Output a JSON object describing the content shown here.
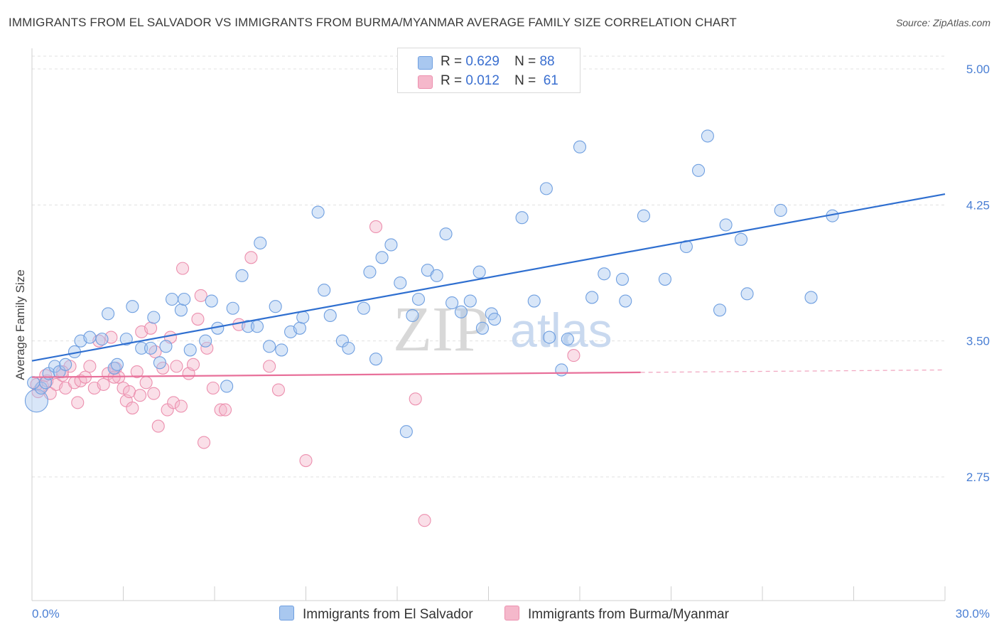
{
  "title": "IMMIGRANTS FROM EL SALVADOR VS IMMIGRANTS FROM BURMA/MYANMAR AVERAGE FAMILY SIZE CORRELATION CHART",
  "source": "Source: ZipAtlas.com",
  "watermark": {
    "zip": "ZIP",
    "atlas": "atlas"
  },
  "colors": {
    "blue_fill": "#a9c8f0",
    "blue_stroke": "#6f9fe0",
    "blue_line": "#2f6fd0",
    "pink_fill": "#f5b8cb",
    "pink_stroke": "#ec8fae",
    "pink_line": "#e8709a",
    "grid": "#e0e0e0",
    "tick_text": "#4a7fd4"
  },
  "legend": {
    "rows": [
      {
        "r_label": "R =",
        "r_value": "0.629",
        "n_label": "N =",
        "n_value": "88"
      },
      {
        "r_label": "R =",
        "r_value": "0.012",
        "n_label": "N =",
        "n_value": "61"
      }
    ]
  },
  "bottom_legend": [
    "Immigrants from El Salvador",
    "Immigrants from Burma/Myanmar"
  ],
  "chart_data": {
    "type": "scatter",
    "xlabel": "",
    "ylabel": "Average Family Size",
    "xlim": [
      0,
      30
    ],
    "ylim": [
      2.0,
      5.15
    ],
    "x_tick_labels": [
      {
        "value": 0,
        "label": "0.0%"
      },
      {
        "value": 30,
        "label": "30.0%"
      }
    ],
    "y_ticks": [
      {
        "value": 5.0,
        "label": "5.00"
      },
      {
        "value": 4.25,
        "label": "4.25"
      },
      {
        "value": 3.5,
        "label": "3.50"
      },
      {
        "value": 2.75,
        "label": "2.75"
      }
    ],
    "grid": "horizontal dashed",
    "series": [
      {
        "name": "Immigrants from El Salvador",
        "color": "blue",
        "trend": {
          "x0": 0,
          "y0": 3.39,
          "x1": 30,
          "y1": 4.31,
          "dashed_from": null
        },
        "points": [
          [
            0.15,
            3.17
          ],
          [
            0.3,
            3.24
          ],
          [
            0.45,
            3.27
          ],
          [
            0.55,
            3.32
          ],
          [
            0.75,
            3.36
          ],
          [
            0.9,
            3.33
          ],
          [
            1.1,
            3.37
          ],
          [
            1.4,
            3.44
          ],
          [
            1.6,
            3.5
          ],
          [
            1.9,
            3.52
          ],
          [
            2.3,
            3.51
          ],
          [
            2.5,
            3.65
          ],
          [
            2.7,
            3.35
          ],
          [
            2.8,
            3.37
          ],
          [
            3.1,
            3.51
          ],
          [
            3.3,
            3.69
          ],
          [
            3.6,
            3.46
          ],
          [
            3.9,
            3.46
          ],
          [
            4.0,
            3.63
          ],
          [
            4.2,
            3.38
          ],
          [
            4.4,
            3.47
          ],
          [
            4.6,
            3.73
          ],
          [
            4.9,
            3.67
          ],
          [
            5.0,
            3.73
          ],
          [
            5.2,
            3.45
          ],
          [
            5.7,
            3.5
          ],
          [
            5.9,
            3.72
          ],
          [
            6.1,
            3.57
          ],
          [
            6.4,
            3.25
          ],
          [
            6.6,
            3.68
          ],
          [
            6.9,
            3.86
          ],
          [
            7.1,
            3.58
          ],
          [
            7.4,
            3.58
          ],
          [
            7.5,
            4.04
          ],
          [
            7.8,
            3.47
          ],
          [
            8.0,
            3.69
          ],
          [
            8.2,
            3.45
          ],
          [
            8.5,
            3.55
          ],
          [
            8.8,
            3.57
          ],
          [
            8.9,
            3.63
          ],
          [
            9.4,
            4.21
          ],
          [
            9.6,
            3.78
          ],
          [
            9.8,
            3.64
          ],
          [
            10.2,
            3.5
          ],
          [
            10.4,
            3.46
          ],
          [
            10.9,
            3.68
          ],
          [
            11.1,
            3.88
          ],
          [
            11.3,
            3.4
          ],
          [
            11.5,
            3.96
          ],
          [
            11.8,
            4.03
          ],
          [
            12.1,
            3.82
          ],
          [
            12.5,
            3.64
          ],
          [
            12.7,
            3.73
          ],
          [
            13.0,
            3.89
          ],
          [
            13.3,
            3.86
          ],
          [
            13.6,
            4.09
          ],
          [
            13.8,
            3.71
          ],
          [
            14.1,
            3.66
          ],
          [
            14.4,
            3.72
          ],
          [
            14.7,
            3.88
          ],
          [
            14.8,
            3.57
          ],
          [
            15.1,
            3.65
          ],
          [
            15.2,
            3.62
          ],
          [
            16.1,
            4.18
          ],
          [
            16.5,
            3.72
          ],
          [
            16.9,
            4.34
          ],
          [
            17.0,
            3.52
          ],
          [
            17.4,
            3.34
          ],
          [
            17.6,
            3.51
          ],
          [
            18.0,
            4.57
          ],
          [
            18.4,
            3.74
          ],
          [
            18.8,
            3.87
          ],
          [
            19.4,
            3.84
          ],
          [
            19.5,
            3.72
          ],
          [
            20.1,
            4.19
          ],
          [
            20.8,
            3.84
          ],
          [
            21.5,
            4.02
          ],
          [
            21.9,
            4.44
          ],
          [
            22.2,
            4.63
          ],
          [
            22.6,
            3.67
          ],
          [
            22.8,
            4.14
          ],
          [
            23.3,
            4.06
          ],
          [
            23.5,
            3.76
          ],
          [
            24.6,
            4.22
          ],
          [
            25.6,
            3.74
          ],
          [
            26.3,
            4.19
          ],
          [
            12.3,
            3.0
          ],
          [
            0.05,
            3.27
          ]
        ]
      },
      {
        "name": "Immigrants from Burma/Myanmar",
        "color": "pink",
        "trend": {
          "x0": 0,
          "y0": 3.3,
          "x1": 30,
          "y1": 3.34,
          "dashed_from": 20
        },
        "points": [
          [
            0.2,
            3.22
          ],
          [
            0.35,
            3.25
          ],
          [
            0.5,
            3.28
          ],
          [
            0.6,
            3.21
          ],
          [
            0.8,
            3.26
          ],
          [
            1.0,
            3.31
          ],
          [
            1.1,
            3.24
          ],
          [
            1.25,
            3.36
          ],
          [
            1.4,
            3.27
          ],
          [
            1.5,
            3.16
          ],
          [
            1.6,
            3.28
          ],
          [
            1.75,
            3.3
          ],
          [
            1.9,
            3.36
          ],
          [
            2.05,
            3.24
          ],
          [
            2.2,
            3.5
          ],
          [
            2.35,
            3.26
          ],
          [
            2.5,
            3.32
          ],
          [
            2.6,
            3.52
          ],
          [
            2.75,
            3.35
          ],
          [
            2.85,
            3.3
          ],
          [
            3.0,
            3.24
          ],
          [
            3.1,
            3.17
          ],
          [
            3.2,
            3.22
          ],
          [
            3.3,
            3.13
          ],
          [
            3.45,
            3.33
          ],
          [
            3.6,
            3.55
          ],
          [
            3.75,
            3.27
          ],
          [
            3.9,
            3.57
          ],
          [
            4.0,
            3.21
          ],
          [
            4.15,
            3.03
          ],
          [
            4.3,
            3.35
          ],
          [
            4.45,
            3.12
          ],
          [
            4.55,
            3.52
          ],
          [
            4.65,
            3.16
          ],
          [
            4.75,
            3.36
          ],
          [
            4.9,
            3.14
          ],
          [
            4.95,
            3.9
          ],
          [
            5.15,
            3.32
          ],
          [
            5.3,
            3.37
          ],
          [
            5.45,
            3.62
          ],
          [
            5.55,
            3.75
          ],
          [
            5.65,
            2.94
          ],
          [
            5.75,
            3.46
          ],
          [
            5.95,
            3.24
          ],
          [
            6.2,
            3.12
          ],
          [
            6.35,
            3.12
          ],
          [
            6.8,
            3.59
          ],
          [
            7.2,
            3.96
          ],
          [
            7.8,
            3.36
          ],
          [
            8.1,
            3.23
          ],
          [
            9.0,
            2.84
          ],
          [
            11.3,
            4.13
          ],
          [
            12.6,
            3.18
          ],
          [
            12.9,
            2.51
          ],
          [
            17.8,
            3.42
          ],
          [
            0.15,
            3.26
          ],
          [
            1.0,
            3.33
          ],
          [
            2.7,
            3.3
          ],
          [
            3.55,
            3.2
          ],
          [
            4.05,
            3.44
          ],
          [
            0.45,
            3.31
          ]
        ]
      }
    ]
  }
}
